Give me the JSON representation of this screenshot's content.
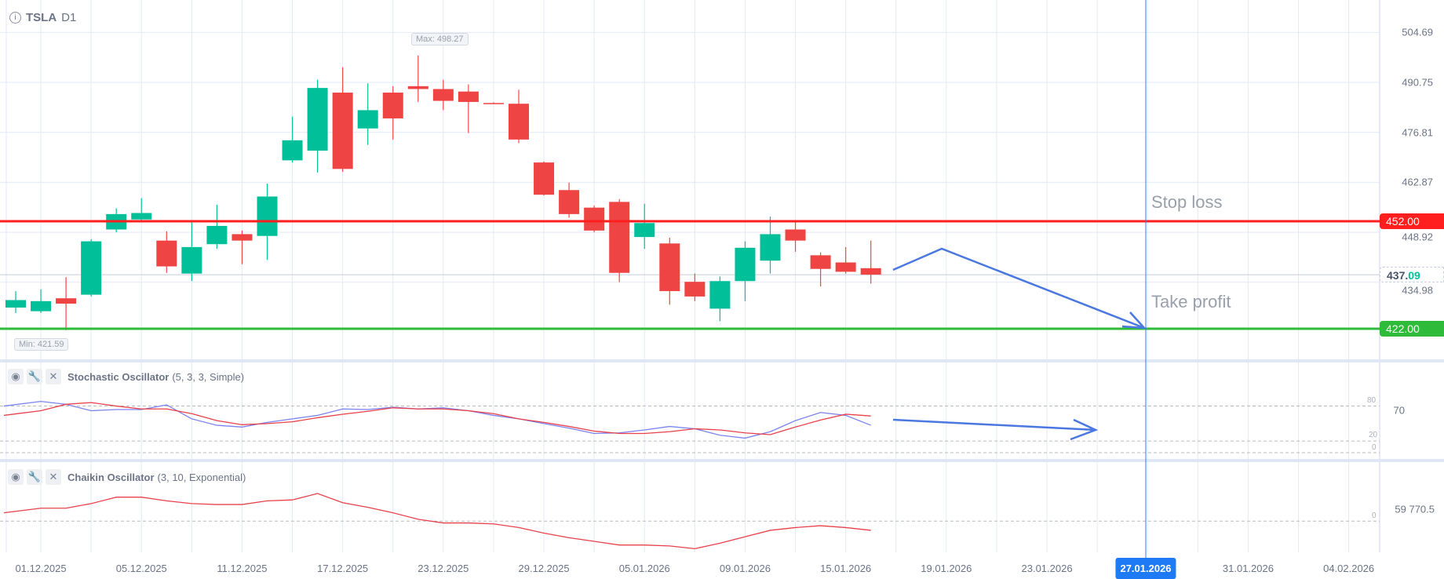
{
  "header": {
    "symbol": "TSLA",
    "timeframe": "D1"
  },
  "annotations": {
    "stop_loss": "Stop loss",
    "take_profit": "Take profit",
    "max": "Max: 498.27",
    "min": "Min: 421.59"
  },
  "price_axis": {
    "ticks": [
      "504.69",
      "490.75",
      "476.81",
      "462.87",
      "448.92",
      "434.98"
    ],
    "stop_loss": "452.00",
    "take_profit": "422.00",
    "current_main": "437.",
    "current_tail": "09"
  },
  "stochastic": {
    "name": "Stochastic Oscillator",
    "params": "(5, 3, 3, Simple)",
    "axis_value": "70",
    "levels": [
      "80",
      "20",
      "0"
    ],
    "k": [
      80,
      88,
      83,
      72,
      74,
      74,
      82,
      58,
      47,
      44,
      52,
      58,
      64,
      75,
      74,
      78,
      75,
      77,
      72,
      64,
      58,
      50,
      42,
      33,
      34,
      39,
      45,
      41,
      30,
      25,
      36,
      55,
      69,
      64,
      47
    ],
    "d": [
      64,
      72,
      83,
      86,
      80,
      75,
      75,
      67,
      55,
      48,
      50,
      53,
      60,
      66,
      71,
      77,
      75,
      75,
      72,
      67,
      58,
      52,
      45,
      37,
      33,
      33,
      36,
      41,
      39,
      34,
      31,
      44,
      56,
      66,
      63
    ]
  },
  "chaikin": {
    "name": "Chaikin Oscillator",
    "params": "(3, 10, Exponential)",
    "axis_value": "59 770.5",
    "level": "0",
    "values": [
      41400,
      64400,
      64400,
      87400,
      119500,
      119500,
      101200,
      87400,
      82800,
      82800,
      101200,
      105800,
      137900,
      92000,
      69000,
      41400,
      9200,
      -9200,
      -9200,
      -13800,
      -32200,
      -59800,
      -82800,
      -101200,
      -119500,
      -119500,
      -124100,
      -137900,
      -110400,
      -78200,
      -46000,
      -32200,
      -23000,
      -32200,
      -46000
    ]
  },
  "date_axis": {
    "labels": [
      "01.12.2025",
      "05.12.2025",
      "11.12.2025",
      "17.12.2025",
      "23.12.2025",
      "29.12.2025",
      "05.01.2026",
      "09.01.2026",
      "15.01.2026",
      "19.01.2026",
      "23.01.2026",
      "27.01.2026",
      "31.01.2026",
      "04.02.2026"
    ],
    "highlighted": "27.01.2026"
  },
  "colors": {
    "up": "#00bf99",
    "down": "#ef4444",
    "stop": "#ff1f1f",
    "take": "#2fbb3a",
    "arrow": "#4a78e0",
    "grid": "#e3e9f7",
    "k": "#7b83f0",
    "d": "#e8414a"
  },
  "chart_data": {
    "type": "candlestick",
    "ylim": [
      415,
      508
    ],
    "ohlc": [
      [
        427.9,
        432.5,
        426.4,
        430
      ],
      [
        426.9,
        433,
        426.4,
        429.7
      ],
      [
        430.5,
        436.4,
        421.59,
        429
      ],
      [
        431.5,
        447,
        431,
        446.4
      ],
      [
        449.7,
        455.6,
        448.9,
        454
      ],
      [
        452.5,
        458.4,
        452,
        454.3
      ],
      [
        446.6,
        449.2,
        437.6,
        439.4
      ],
      [
        437.4,
        452,
        435.3,
        444.8
      ],
      [
        445.6,
        456.6,
        444.3,
        450.7
      ],
      [
        448.4,
        449.4,
        440,
        446.6
      ],
      [
        447.9,
        462.5,
        441.2,
        458.9
      ],
      [
        469,
        481.2,
        468.4,
        474.6
      ],
      [
        471.7,
        491.5,
        465.6,
        489.2
      ],
      [
        487.9,
        495,
        465.8,
        466.6
      ],
      [
        477.9,
        490.5,
        473.3,
        483
      ],
      [
        487.9,
        489.7,
        474.8,
        480.7
      ],
      [
        489.7,
        498.27,
        485.3,
        488.9
      ],
      [
        488.9,
        491.5,
        483,
        485.6
      ],
      [
        488.2,
        490.2,
        476.6,
        485.3
      ],
      [
        485,
        485.2,
        484.8,
        484.8
      ],
      [
        484.8,
        488.7,
        473.8,
        474.8
      ],
      [
        468.4,
        468.7,
        459.2,
        459.4
      ],
      [
        460.7,
        462.8,
        453,
        454
      ],
      [
        455.8,
        456.4,
        448.9,
        449.4
      ],
      [
        457.4,
        458.2,
        435,
        437.6
      ],
      [
        447.6,
        456.9,
        444.3,
        451.5
      ],
      [
        445.8,
        447.4,
        428.7,
        432.5
      ],
      [
        435.1,
        437.4,
        429.7,
        431
      ],
      [
        427.6,
        436.6,
        424.1,
        435.3
      ],
      [
        435.3,
        446.4,
        429.7,
        444.6
      ],
      [
        441,
        453.3,
        437.4,
        448.4
      ],
      [
        449.7,
        452,
        443.5,
        446.6
      ],
      [
        442.5,
        443.3,
        433.8,
        438.7
      ],
      [
        440.5,
        444.8,
        437.4,
        437.9
      ],
      [
        438.9,
        446.6,
        434.6,
        437.1
      ]
    ],
    "tick_values": [
      504.69,
      490.75,
      476.81,
      462.87,
      448.92,
      434.98
    ],
    "stop_loss": 452,
    "take_profit": 422,
    "current": 437.09
  }
}
